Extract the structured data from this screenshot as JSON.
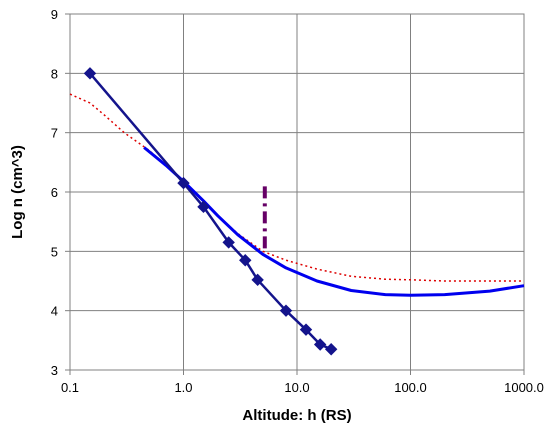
{
  "chart_data": {
    "type": "line",
    "title": "",
    "xlabel": "Altitude:  h  (RS)",
    "ylabel": "Log  n (cm^3)",
    "x_scale": "log",
    "xlim": [
      0.1,
      1000
    ],
    "ylim": [
      3,
      9
    ],
    "x_ticks": [
      "0.1",
      "1.0",
      "10.0",
      "100.0",
      "1000.0"
    ],
    "y_ticks": [
      "3",
      "4",
      "5",
      "6",
      "7",
      "8",
      "9"
    ],
    "grid": true,
    "legend": "none",
    "series": [
      {
        "style": "solid line with diamond markers",
        "color": "#14148c",
        "x": [
          0.15,
          1.0,
          1.5,
          2.5,
          3.5,
          4.5,
          8.0,
          12.0,
          16.0,
          20.0
        ],
        "y": [
          8.0,
          6.15,
          5.75,
          5.15,
          4.85,
          4.52,
          4.0,
          3.68,
          3.43,
          3.35
        ]
      },
      {
        "style": "solid line",
        "color": "#0000ee",
        "x": [
          0.45,
          0.7,
          1.0,
          1.5,
          2.0,
          3.0,
          5.0,
          8.0,
          15.0,
          30.0,
          60.0,
          100.0,
          200.0,
          500.0,
          1000.0
        ],
        "y": [
          6.75,
          6.45,
          6.18,
          5.85,
          5.6,
          5.28,
          4.95,
          4.72,
          4.5,
          4.34,
          4.27,
          4.26,
          4.27,
          4.33,
          4.42
        ]
      },
      {
        "style": "dotted line",
        "color": "#dd0000",
        "x": [
          0.1,
          0.15,
          0.2,
          0.3,
          0.5,
          0.7,
          1.0,
          1.5,
          2.0,
          3.0,
          5.0,
          8.0,
          15.0,
          30.0,
          60.0,
          100.0,
          200.0,
          500.0,
          1000.0
        ],
        "y": [
          7.65,
          7.5,
          7.3,
          7.0,
          6.7,
          6.45,
          6.18,
          5.85,
          5.6,
          5.3,
          5.0,
          4.85,
          4.7,
          4.58,
          4.53,
          4.52,
          4.5,
          4.5,
          4.5
        ]
      },
      {
        "style": "dash-dot vertical segment",
        "color": "#660066",
        "x": [
          5.2,
          5.2
        ],
        "y": [
          5.05,
          6.1
        ]
      }
    ]
  }
}
